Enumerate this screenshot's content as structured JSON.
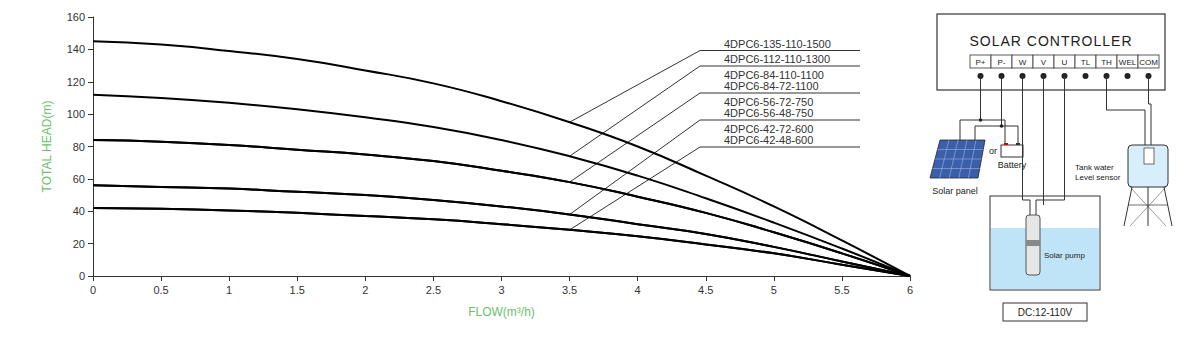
{
  "chart_data": {
    "type": "line",
    "x_label": "FLOW(m³/h)",
    "y_label": "TOTAL HEAD(m)",
    "x": [
      0,
      0.5,
      1,
      1.5,
      2,
      2.5,
      3,
      3.5,
      4,
      4.5,
      5,
      5.5,
      6
    ],
    "series": [
      {
        "name": "4DPC6-135-110-1500",
        "color": "#000000",
        "values": [
          145,
          143,
          139,
          134,
          127,
          119,
          108,
          95,
          80,
          62,
          43,
          22,
          0
        ]
      },
      {
        "name": "4DPC6-112-110-1300",
        "color": "#000000",
        "values": [
          112,
          110,
          107,
          103,
          98,
          92,
          84,
          74,
          62,
          48,
          33,
          17,
          0
        ]
      },
      {
        "name": "4DPC6-84-110-1100",
        "color": "#000000",
        "values": [
          84,
          83,
          81,
          78,
          75,
          71,
          65,
          58,
          49,
          39,
          27,
          14,
          0
        ]
      },
      {
        "name": "4DPC6-84-72-1100",
        "color": "#000000",
        "values": [
          84,
          83,
          81,
          78,
          75,
          71,
          65,
          58,
          49,
          39,
          27,
          14,
          0
        ]
      },
      {
        "name": "4DPC6-56-72-750",
        "color": "#000000",
        "values": [
          56,
          55,
          54,
          52,
          50,
          47,
          43,
          38,
          32,
          26,
          18,
          9,
          0
        ]
      },
      {
        "name": "4DPC6-56-48-750",
        "color": "#000000",
        "values": [
          56,
          55,
          54,
          52,
          50,
          47,
          43,
          38,
          32,
          26,
          18,
          9,
          0
        ]
      },
      {
        "name": "4DPC6-42-72-600",
        "color": "#000000",
        "values": [
          42,
          41.5,
          40.5,
          39,
          37,
          35,
          32,
          28.5,
          24.5,
          19.5,
          14,
          7,
          0
        ]
      },
      {
        "name": "4DPC6-42-48-600",
        "color": "#000000",
        "values": [
          42,
          41.5,
          40.5,
          39,
          37,
          35,
          32,
          28.5,
          24.5,
          19.5,
          14,
          7,
          0
        ]
      }
    ],
    "xlim": [
      0,
      6
    ],
    "xticks": [
      0,
      0.5,
      1,
      1.5,
      2,
      2.5,
      3,
      3.5,
      4,
      4.5,
      5,
      5.5,
      6
    ],
    "ylim": [
      0,
      160
    ],
    "yticks": [
      0,
      20,
      40,
      60,
      80,
      100,
      120,
      140,
      160
    ],
    "grid": false
  },
  "diagram": {
    "controller": {
      "title": "SOLAR CONTROLLER",
      "terminals": [
        "P+",
        "P-",
        "W",
        "V",
        "U",
        "TL",
        "TH",
        "WEL",
        "COM"
      ]
    },
    "solar_panel": "Solar panel",
    "separator": "or",
    "battery": "Battery",
    "tank_sensor": [
      "Tank water",
      "Level sensor"
    ],
    "pump": "Solar pump",
    "voltage": "DC:12-110V"
  }
}
